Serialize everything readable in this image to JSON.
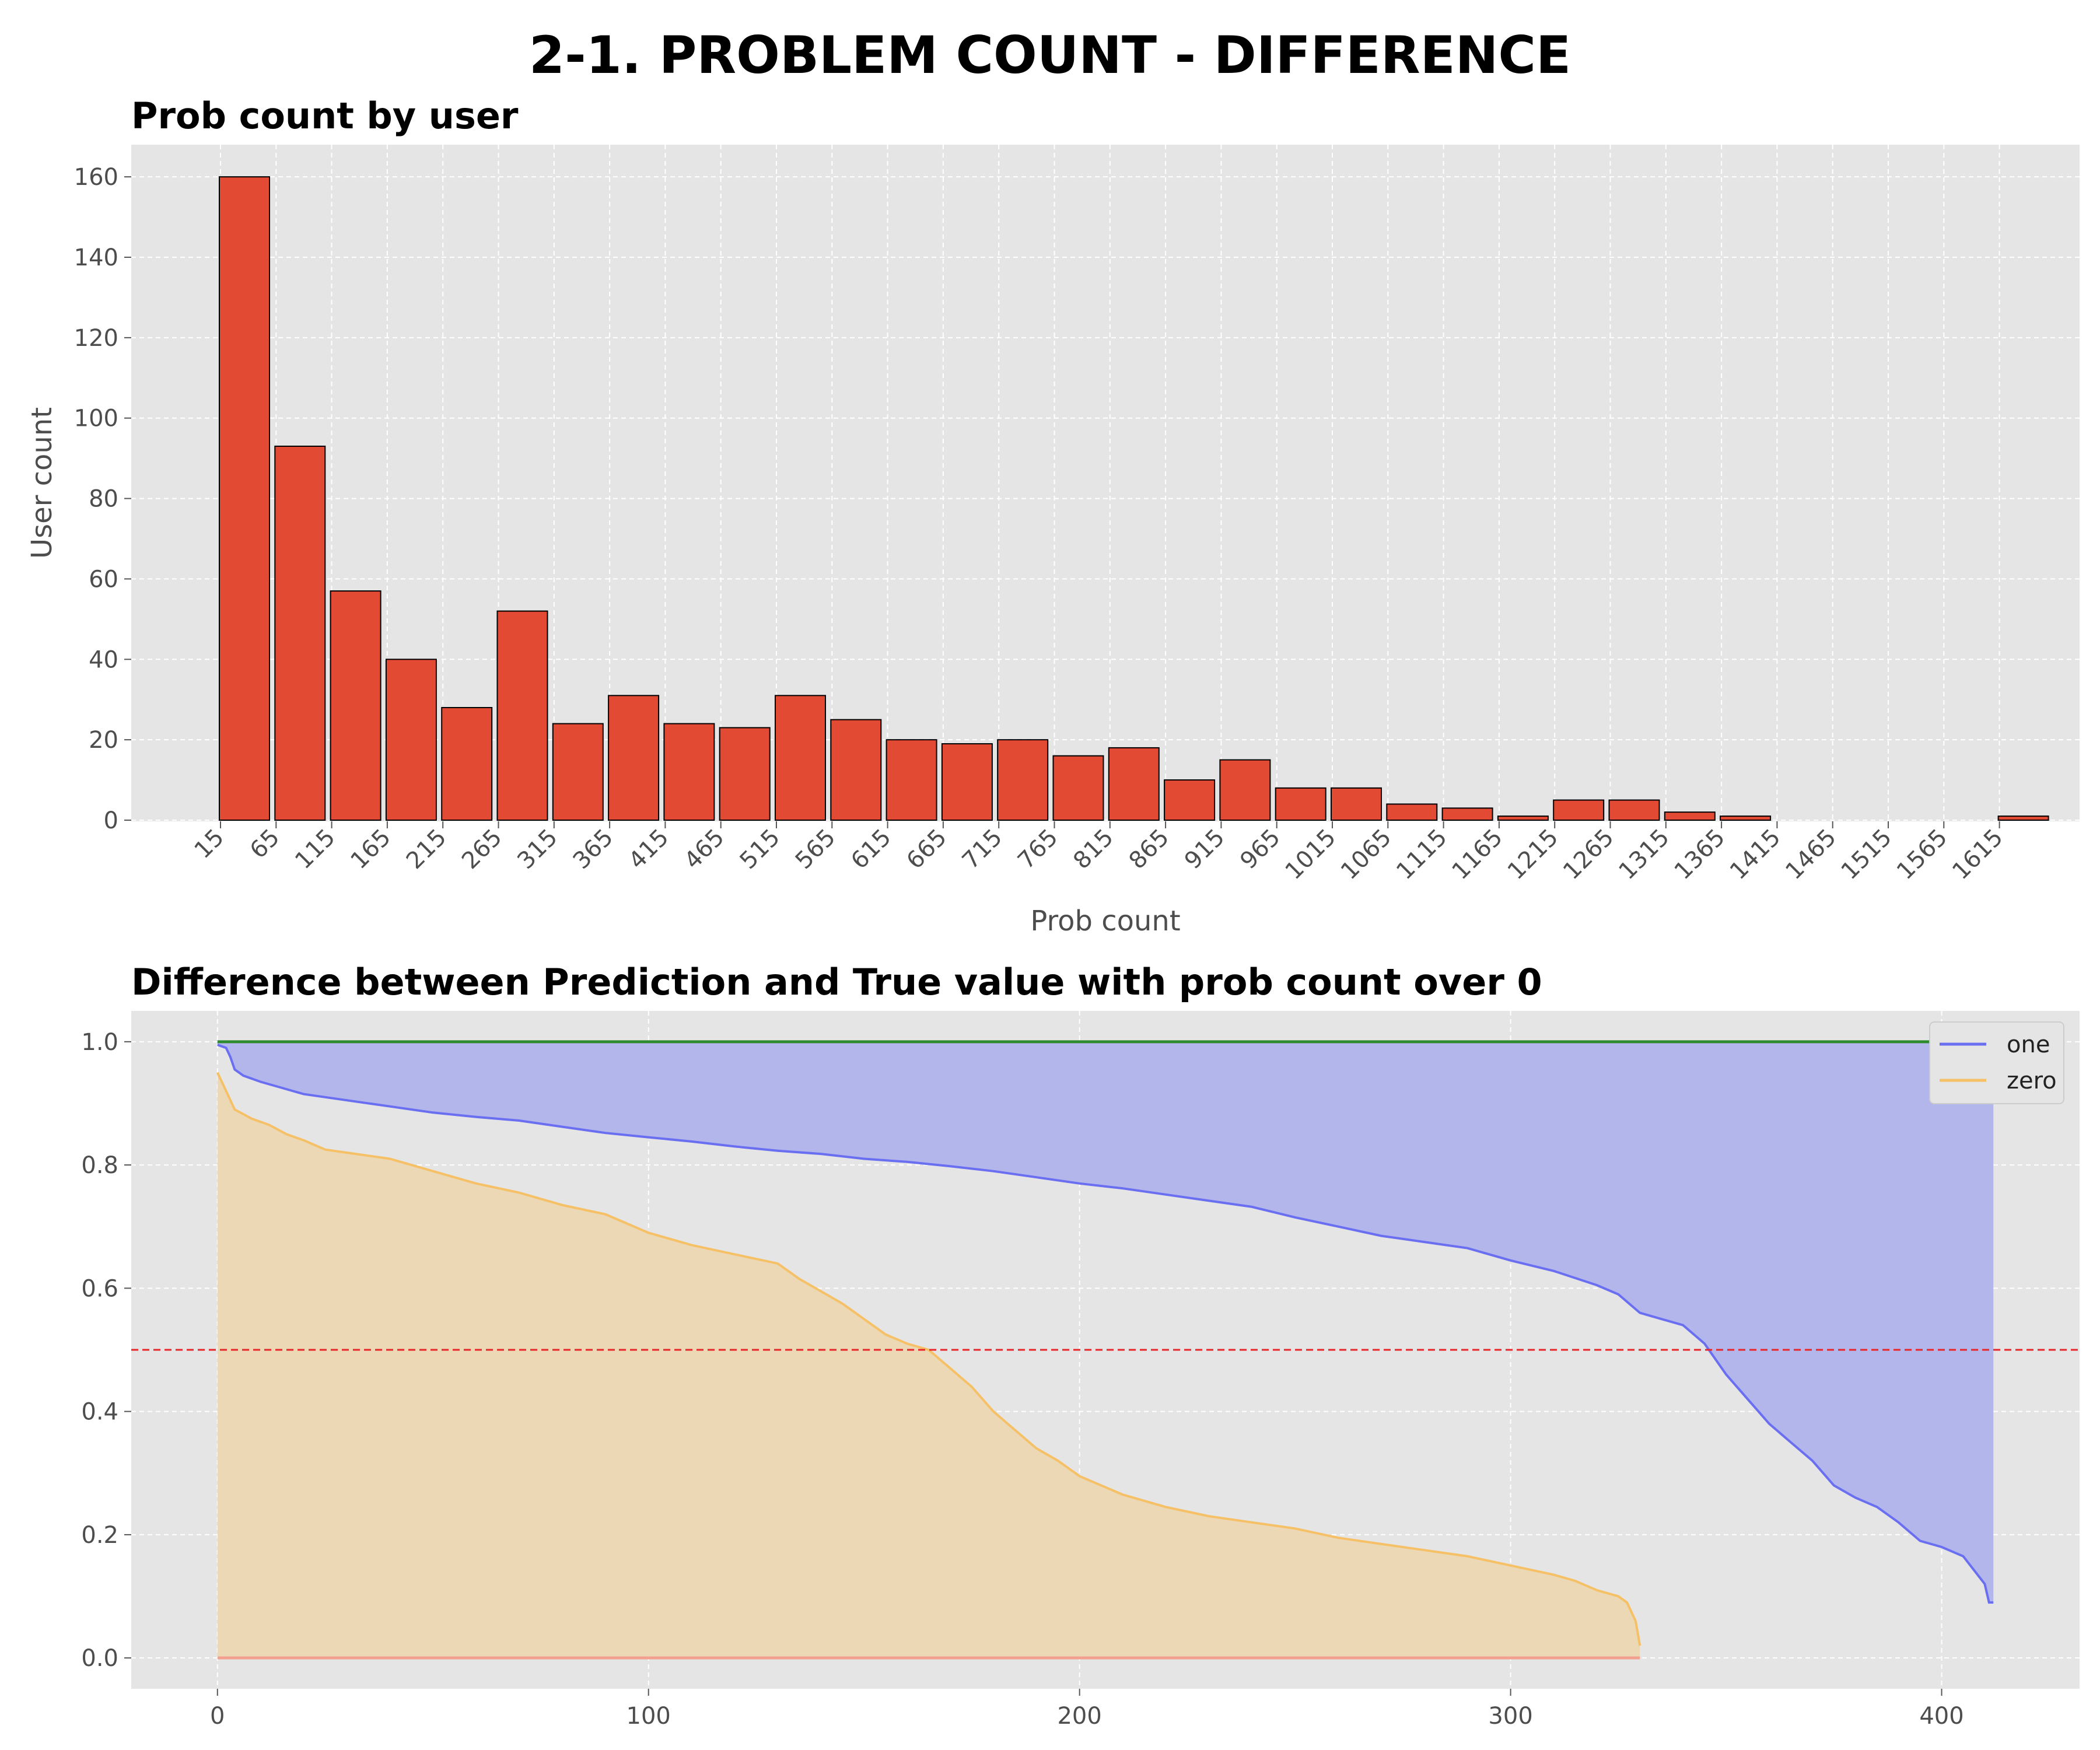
{
  "title": "2-1. PROBLEM COUNT - DIFFERENCE",
  "colors": {
    "axes_bg": "#e5e5e5",
    "bar": "#e24a33",
    "bar_edge": "#000000",
    "one": "#6a6ef0",
    "one_fill": "#b3b6ea",
    "zero": "#f5c066",
    "zero_fill": "#ecd8b4",
    "ref_top": "#2e8b2e",
    "ref_bottom": "#f4a090",
    "threshold": "#e8262a"
  },
  "chart_data": [
    {
      "type": "bar",
      "title": "Prob count by user",
      "xlabel": "Prob count",
      "ylabel": "User count",
      "grid": true,
      "categories": [
        "15",
        "65",
        "115",
        "165",
        "215",
        "265",
        "315",
        "365",
        "415",
        "465",
        "515",
        "565",
        "615",
        "665",
        "715",
        "765",
        "815",
        "865",
        "915",
        "965",
        "1015",
        "1065",
        "1115",
        "1165",
        "1215",
        "1265",
        "1315",
        "1365",
        "1415",
        "1465",
        "1515",
        "1565",
        "1615"
      ],
      "values": [
        160,
        93,
        57,
        40,
        28,
        52,
        24,
        31,
        24,
        23,
        31,
        25,
        20,
        19,
        20,
        16,
        18,
        10,
        15,
        8,
        8,
        4,
        3,
        1,
        5,
        5,
        2,
        1,
        0,
        0,
        0,
        0,
        1
      ],
      "yticks": [
        0,
        20,
        40,
        60,
        80,
        100,
        120,
        140,
        160
      ],
      "ylim": [
        0,
        168
      ]
    },
    {
      "type": "area",
      "title": "Difference between Prediction and True value with prob count over 0",
      "xlabel": "",
      "ylabel": "",
      "grid": true,
      "legend": "top-right",
      "xticks": [
        0,
        100,
        200,
        300,
        400
      ],
      "yticks": [
        "0.0",
        "0.2",
        "0.4",
        "0.6",
        "0.8",
        "1.0"
      ],
      "xlim": [
        -20,
        432
      ],
      "ylim": [
        -0.05,
        1.05
      ],
      "series": [
        {
          "name": "one",
          "points": [
            [
              0,
              0.995
            ],
            [
              2,
              0.99
            ],
            [
              3,
              0.975
            ],
            [
              4,
              0.955
            ],
            [
              6,
              0.945
            ],
            [
              10,
              0.935
            ],
            [
              15,
              0.925
            ],
            [
              20,
              0.915
            ],
            [
              30,
              0.905
            ],
            [
              40,
              0.895
            ],
            [
              50,
              0.885
            ],
            [
              60,
              0.878
            ],
            [
              70,
              0.872
            ],
            [
              80,
              0.862
            ],
            [
              90,
              0.852
            ],
            [
              100,
              0.845
            ],
            [
              110,
              0.838
            ],
            [
              120,
              0.83
            ],
            [
              130,
              0.823
            ],
            [
              140,
              0.818
            ],
            [
              150,
              0.81
            ],
            [
              160,
              0.805
            ],
            [
              170,
              0.798
            ],
            [
              180,
              0.79
            ],
            [
              190,
              0.78
            ],
            [
              200,
              0.77
            ],
            [
              210,
              0.762
            ],
            [
              220,
              0.752
            ],
            [
              230,
              0.742
            ],
            [
              240,
              0.732
            ],
            [
              250,
              0.715
            ],
            [
              260,
              0.7
            ],
            [
              270,
              0.685
            ],
            [
              280,
              0.675
            ],
            [
              290,
              0.665
            ],
            [
              300,
              0.645
            ],
            [
              310,
              0.628
            ],
            [
              320,
              0.605
            ],
            [
              325,
              0.59
            ],
            [
              330,
              0.56
            ],
            [
              335,
              0.55
            ],
            [
              340,
              0.54
            ],
            [
              345,
              0.51
            ],
            [
              348,
              0.48
            ],
            [
              350,
              0.46
            ],
            [
              355,
              0.42
            ],
            [
              360,
              0.38
            ],
            [
              365,
              0.35
            ],
            [
              370,
              0.32
            ],
            [
              375,
              0.28
            ],
            [
              380,
              0.26
            ],
            [
              385,
              0.245
            ],
            [
              390,
              0.22
            ],
            [
              395,
              0.19
            ],
            [
              400,
              0.18
            ],
            [
              405,
              0.165
            ],
            [
              410,
              0.12
            ],
            [
              411,
              0.09
            ],
            [
              412,
              0.09
            ]
          ]
        },
        {
          "name": "zero",
          "points": [
            [
              0,
              0.95
            ],
            [
              2,
              0.92
            ],
            [
              4,
              0.89
            ],
            [
              8,
              0.875
            ],
            [
              12,
              0.865
            ],
            [
              16,
              0.85
            ],
            [
              20,
              0.84
            ],
            [
              25,
              0.825
            ],
            [
              30,
              0.82
            ],
            [
              40,
              0.81
            ],
            [
              50,
              0.79
            ],
            [
              60,
              0.77
            ],
            [
              70,
              0.755
            ],
            [
              80,
              0.735
            ],
            [
              90,
              0.72
            ],
            [
              100,
              0.69
            ],
            [
              110,
              0.67
            ],
            [
              120,
              0.655
            ],
            [
              130,
              0.64
            ],
            [
              135,
              0.615
            ],
            [
              140,
              0.595
            ],
            [
              145,
              0.575
            ],
            [
              150,
              0.55
            ],
            [
              155,
              0.525
            ],
            [
              160,
              0.51
            ],
            [
              165,
              0.5
            ],
            [
              170,
              0.47
            ],
            [
              175,
              0.44
            ],
            [
              180,
              0.4
            ],
            [
              185,
              0.37
            ],
            [
              190,
              0.34
            ],
            [
              195,
              0.32
            ],
            [
              200,
              0.295
            ],
            [
              210,
              0.265
            ],
            [
              220,
              0.245
            ],
            [
              230,
              0.23
            ],
            [
              240,
              0.22
            ],
            [
              250,
              0.21
            ],
            [
              260,
              0.195
            ],
            [
              270,
              0.185
            ],
            [
              280,
              0.175
            ],
            [
              290,
              0.165
            ],
            [
              300,
              0.15
            ],
            [
              310,
              0.135
            ],
            [
              315,
              0.125
            ],
            [
              320,
              0.11
            ],
            [
              325,
              0.1
            ],
            [
              327,
              0.09
            ],
            [
              329,
              0.06
            ],
            [
              330,
              0.02
            ]
          ]
        }
      ],
      "reference_lines": [
        {
          "y": 1.0,
          "x_range": [
            0,
            412
          ],
          "color_key": "ref_top"
        },
        {
          "y": 0.0,
          "x_range": [
            0,
            330
          ],
          "color_key": "ref_bottom"
        },
        {
          "y": 0.5,
          "dashed": true,
          "color_key": "threshold"
        }
      ]
    }
  ]
}
